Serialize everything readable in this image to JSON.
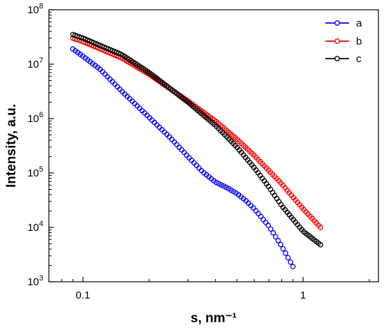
{
  "chart_data": {
    "type": "scatter",
    "xscale": "log",
    "yscale": "log",
    "xlabel": "s, nm⁻¹",
    "ylabel": "Intensity, a.u.",
    "xlim": [
      0.07,
      2.2
    ],
    "ylim": [
      1000,
      100000000
    ],
    "x_ticks": [
      {
        "value": 0.1,
        "label": "0.1"
      },
      {
        "value": 1,
        "label": "1"
      }
    ],
    "y_ticks": [
      {
        "value": 1000,
        "base": "10",
        "exp": "3"
      },
      {
        "value": 10000,
        "base": "10",
        "exp": "4"
      },
      {
        "value": 100000,
        "base": "10",
        "exp": "5"
      },
      {
        "value": 1000000,
        "base": "10",
        "exp": "6"
      },
      {
        "value": 10000000,
        "base": "10",
        "exp": "7"
      },
      {
        "value": 100000000,
        "base": "10",
        "exp": "8"
      }
    ],
    "grid": false,
    "legend_position": "top-right",
    "marker": "open-circle",
    "series": [
      {
        "name": "a",
        "color": "#0000ff",
        "x_range": [
          0.09,
          0.9
        ],
        "n_points": 90,
        "anchors": [
          [
            0.09,
            19000000
          ],
          [
            0.1,
            14000000
          ],
          [
            0.12,
            8000000
          ],
          [
            0.15,
            3200000
          ],
          [
            0.2,
            1050000
          ],
          [
            0.25,
            440000
          ],
          [
            0.3,
            200000
          ],
          [
            0.35,
            105000
          ],
          [
            0.4,
            68000
          ],
          [
            0.45,
            54000
          ],
          [
            0.5,
            42000
          ],
          [
            0.55,
            31000
          ],
          [
            0.6,
            22000
          ],
          [
            0.7,
            10500
          ],
          [
            0.8,
            4500
          ],
          [
            0.9,
            1900
          ]
        ]
      },
      {
        "name": "b",
        "color": "#ff0000",
        "x_range": [
          0.09,
          1.2
        ],
        "n_points": 120,
        "anchors": [
          [
            0.09,
            30000000
          ],
          [
            0.1,
            26000000
          ],
          [
            0.15,
            13000000
          ],
          [
            0.2,
            6500000
          ],
          [
            0.3,
            2100000
          ],
          [
            0.4,
            900000
          ],
          [
            0.5,
            420000
          ],
          [
            0.6,
            210000
          ],
          [
            0.8,
            63000
          ],
          [
            1.0,
            22000
          ],
          [
            1.2,
            10000
          ]
        ]
      },
      {
        "name": "c",
        "color": "#000000",
        "x_range": [
          0.09,
          1.2
        ],
        "n_points": 120,
        "anchors": [
          [
            0.09,
            35000000
          ],
          [
            0.1,
            30000000
          ],
          [
            0.15,
            15000000
          ],
          [
            0.2,
            7000000
          ],
          [
            0.3,
            2000000
          ],
          [
            0.4,
            750000
          ],
          [
            0.5,
            300000
          ],
          [
            0.6,
            125000
          ],
          [
            0.7,
            55000
          ],
          [
            0.8,
            25000
          ],
          [
            1.0,
            8500
          ],
          [
            1.2,
            4800
          ]
        ]
      }
    ]
  }
}
